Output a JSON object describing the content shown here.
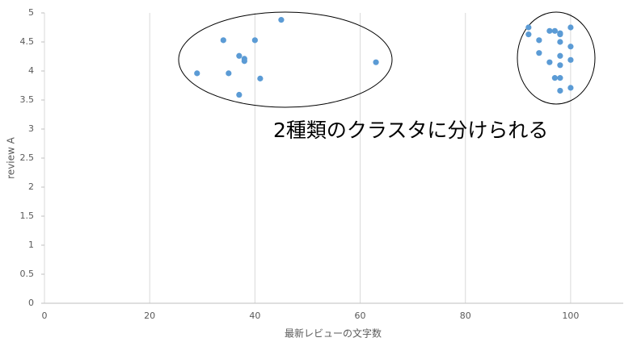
{
  "chart_data": {
    "type": "scatter",
    "x_label": "最新レビューの文字数",
    "y_label": "review A",
    "annotation": "2種類のクラスタに分けられる",
    "x": [
      29,
      34,
      35,
      37,
      38,
      38,
      37,
      40,
      41,
      45,
      63,
      92,
      92,
      94,
      94,
      96,
      97,
      98,
      98,
      98,
      96,
      98,
      98,
      97,
      98,
      98,
      100,
      100,
      100,
      100
    ],
    "values": [
      3.96,
      4.53,
      3.96,
      4.26,
      4.21,
      4.17,
      3.59,
      4.53,
      3.87,
      4.88,
      4.15,
      4.75,
      4.63,
      4.53,
      4.31,
      4.69,
      4.69,
      4.65,
      4.63,
      4.5,
      4.15,
      4.26,
      4.1,
      3.88,
      3.88,
      3.66,
      4.75,
      4.42,
      4.19,
      3.71
    ],
    "color": "#5b9bd5",
    "xlim": [
      0,
      110
    ],
    "xticks": [
      0,
      20,
      40,
      60,
      80,
      100
    ],
    "ylim": [
      0,
      5
    ],
    "yticks": [
      0,
      0.5,
      1,
      1.5,
      2,
      2.5,
      3,
      3.5,
      4,
      4.5,
      5
    ],
    "grid": "x"
  }
}
